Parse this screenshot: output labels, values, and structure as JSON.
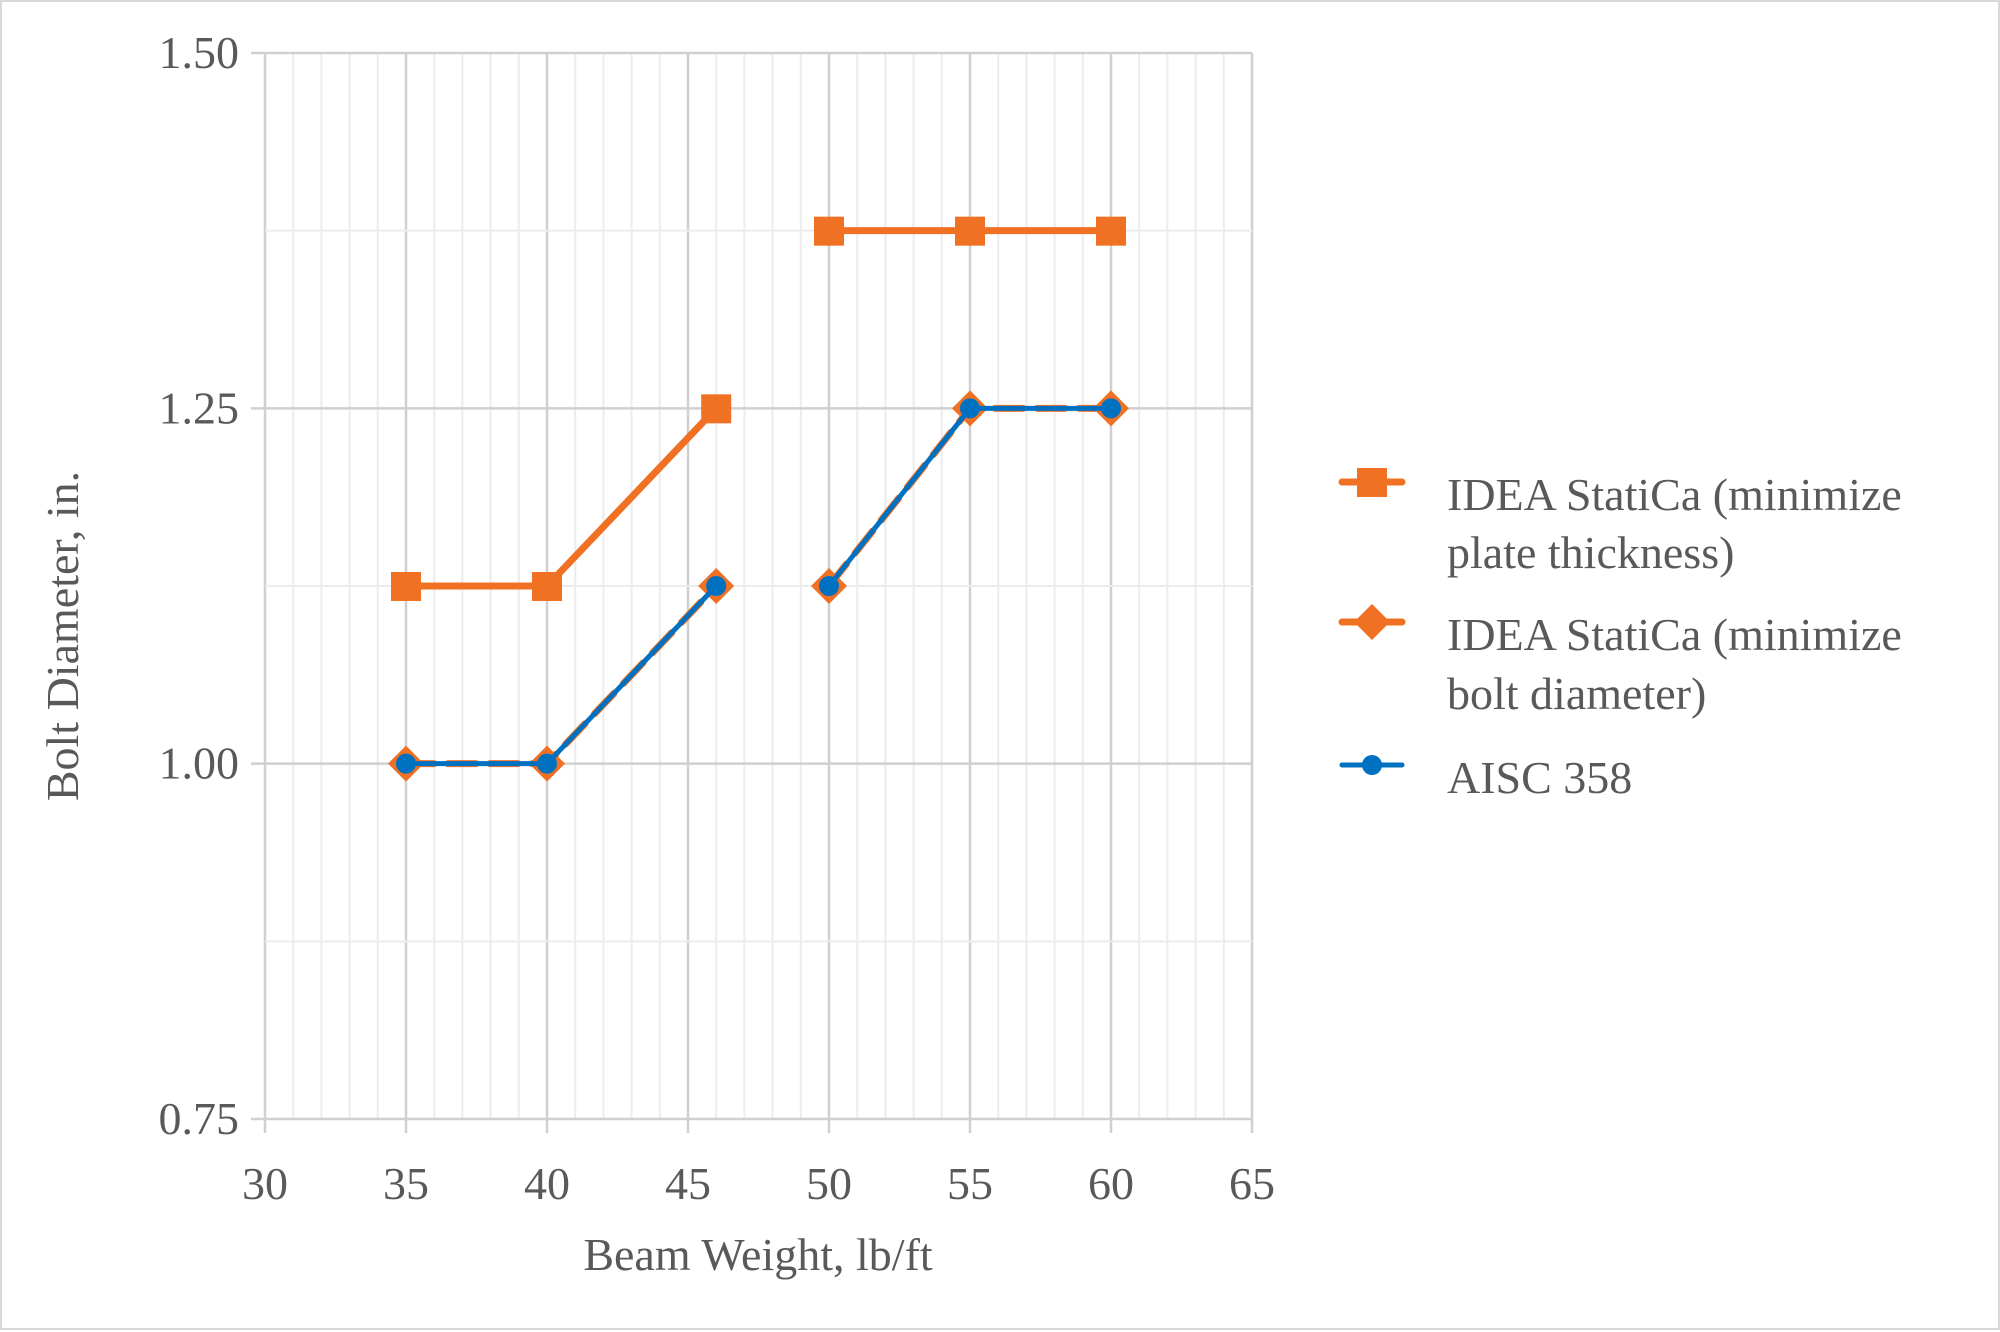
{
  "chart_data": {
    "type": "line",
    "title": "",
    "xlabel": "Beam Weight, lb/ft",
    "ylabel": "Bolt Diameter, in.",
    "xlim": [
      30,
      65
    ],
    "ylim": [
      0.75,
      1.5
    ],
    "x_ticks": [
      "30",
      "35",
      "40",
      "45",
      "50",
      "55",
      "60",
      "65"
    ],
    "y_ticks": [
      "0.75",
      "1.00",
      "1.25",
      "1.50"
    ],
    "grid": {
      "major": true,
      "minor": true,
      "x_minor_step": 1,
      "y_minor_step": 0.125
    },
    "legend_position": "right",
    "series": [
      {
        "name": "IDEA StatiCa (minimize plate thickness)",
        "legend_lines": [
          "IDEA StatiCa (minimize",
          "plate thickness)"
        ],
        "color": "#F07024",
        "marker": "square",
        "line": "solid",
        "points": [
          [
            35,
            1.125
          ],
          [
            40,
            1.125
          ],
          [
            46,
            1.25
          ],
          null,
          [
            50,
            1.375
          ],
          [
            55,
            1.375
          ],
          [
            60,
            1.375
          ]
        ]
      },
      {
        "name": "IDEA StatiCa (minimize bolt diameter)",
        "legend_lines": [
          "IDEA StatiCa (minimize",
          "bolt diameter)"
        ],
        "color": "#F07024",
        "marker": "diamond",
        "line": "dashed",
        "points": [
          [
            35,
            1.0
          ],
          [
            40,
            1.0
          ],
          [
            46,
            1.125
          ],
          null,
          [
            50,
            1.125
          ],
          [
            55,
            1.25
          ],
          [
            60,
            1.25
          ]
        ]
      },
      {
        "name": "AISC 358",
        "legend_lines": [
          "AISC 358"
        ],
        "color": "#0070C0",
        "marker": "circle",
        "line": "solid",
        "points": [
          [
            35,
            1.0
          ],
          [
            40,
            1.0
          ],
          [
            46,
            1.125
          ],
          null,
          [
            50,
            1.125
          ],
          [
            55,
            1.25
          ],
          [
            60,
            1.25
          ]
        ]
      }
    ]
  }
}
